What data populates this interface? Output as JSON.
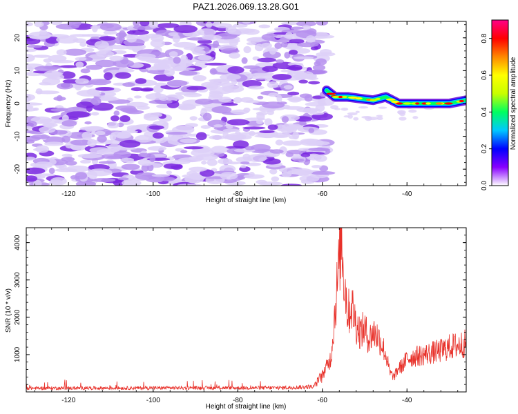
{
  "title": "PAZ1.2026.069.13.28.G01",
  "colors": {
    "snr_line": "#e8312a",
    "axis": "#000000",
    "background": "#ffffff",
    "noise_light": "#ddd0f8",
    "noise_mid": "#b690ee",
    "noise_dark": "#7a28e0"
  },
  "chart_data": [
    {
      "id": "spectrogram",
      "type": "heatmap",
      "title": "PAZ1.2026.069.13.28.G01",
      "xlabel": "Height of straight line (km)",
      "ylabel": "Frequency (Hz)",
      "xlim": [
        -130,
        -26
      ],
      "ylim": [
        -25,
        25
      ],
      "xticks": [
        -120,
        -100,
        -80,
        -60,
        -40
      ],
      "yticks": [
        -20,
        -10,
        0,
        10,
        20
      ],
      "noise_region_x": [
        -130,
        -59
      ],
      "signal_ridge": {
        "points": [
          {
            "x": -59,
            "y": 4
          },
          {
            "x": -57,
            "y": 2
          },
          {
            "x": -54,
            "y": 2
          },
          {
            "x": -51,
            "y": 1.5
          },
          {
            "x": -48,
            "y": 1
          },
          {
            "x": -45,
            "y": 2
          },
          {
            "x": -42,
            "y": 0
          },
          {
            "x": -38,
            "y": 0
          },
          {
            "x": -34,
            "y": 0
          },
          {
            "x": -30,
            "y": 0
          },
          {
            "x": -26,
            "y": 1
          }
        ]
      },
      "colorbar": {
        "label": "Normalized spectral amplitude",
        "range": [
          0.0,
          0.9
        ],
        "ticks": [
          "0.0",
          "0.2",
          "0.4",
          "0.6",
          "0.8"
        ],
        "tick_values": [
          0.0,
          0.2,
          0.4,
          0.6,
          0.8
        ],
        "stops": [
          "#ffffff",
          "#8800ff",
          "#0000ff",
          "#00c8ff",
          "#00ff60",
          "#c8ff00",
          "#ffff00",
          "#ff8800",
          "#ff0000",
          "#ff0088"
        ]
      }
    },
    {
      "id": "snr",
      "type": "line",
      "xlabel": "Height of straight line (km)",
      "ylabel": "SNR (10 * v/v)",
      "xlim": [
        -130,
        -26
      ],
      "ylim": [
        0,
        4400
      ],
      "xticks": [
        -120,
        -100,
        -80,
        -60,
        -40
      ],
      "yticks": [
        1000,
        2000,
        3000,
        4000
      ],
      "series": [
        {
          "name": "SNR",
          "envelope_x": [
            -130,
            -70,
            -62,
            -60,
            -58,
            -57,
            -56,
            -55.5,
            -55,
            -54.5,
            -54,
            -53,
            -52,
            -51,
            -50,
            -49,
            -48,
            -47,
            -46,
            -45,
            -44,
            -43,
            -42,
            -41,
            -40,
            -38,
            -36,
            -34,
            -32,
            -30,
            -28,
            -26
          ],
          "envelope_y": [
            100,
            110,
            140,
            450,
            900,
            2200,
            3500,
            4300,
            3200,
            2700,
            2100,
            2300,
            1800,
            1600,
            1700,
            1400,
            1600,
            1500,
            1300,
            1000,
            500,
            400,
            650,
            700,
            900,
            950,
            1000,
            1050,
            1100,
            1200,
            1250,
            1300
          ]
        }
      ]
    }
  ]
}
